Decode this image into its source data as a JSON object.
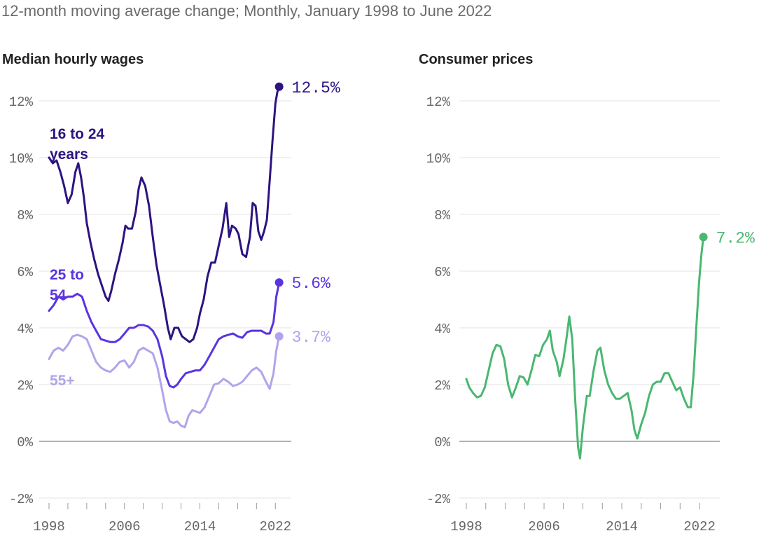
{
  "subtitle": "12-month moving average change; Monthly, January 1998 to June 2022",
  "chart_data": [
    {
      "type": "line",
      "title": "Median hourly wages",
      "y_ticks": [
        "-2%",
        "0%",
        "2%",
        "4%",
        "6%",
        "8%",
        "10%",
        "12%"
      ],
      "x_ticks": [
        "1998",
        "2006",
        "2014",
        "2022"
      ],
      "ylim": [
        -2,
        12
      ],
      "xlim": [
        1998,
        2022.5
      ],
      "grid": true,
      "series": [
        {
          "name": "16 to 24 years",
          "label_lines": [
            "16 to 24",
            "years"
          ],
          "color": "#2d1381",
          "end_label": "12.5%",
          "points": [
            [
              1998.0,
              10.0
            ],
            [
              1998.4,
              9.8
            ],
            [
              1998.8,
              9.9
            ],
            [
              1999.2,
              9.5
            ],
            [
              1999.6,
              9.0
            ],
            [
              2000.0,
              8.4
            ],
            [
              2000.4,
              8.7
            ],
            [
              2000.8,
              9.5
            ],
            [
              2001.1,
              9.8
            ],
            [
              2001.4,
              9.3
            ],
            [
              2001.7,
              8.6
            ],
            [
              2002.0,
              7.7
            ],
            [
              2002.4,
              7.0
            ],
            [
              2002.8,
              6.4
            ],
            [
              2003.2,
              5.9
            ],
            [
              2003.6,
              5.5
            ],
            [
              2004.0,
              5.1
            ],
            [
              2004.3,
              4.95
            ],
            [
              2004.6,
              5.3
            ],
            [
              2005.0,
              5.9
            ],
            [
              2005.4,
              6.4
            ],
            [
              2005.8,
              7.0
            ],
            [
              2006.1,
              7.6
            ],
            [
              2006.4,
              7.5
            ],
            [
              2006.8,
              7.5
            ],
            [
              2007.2,
              8.1
            ],
            [
              2007.5,
              8.9
            ],
            [
              2007.8,
              9.3
            ],
            [
              2008.2,
              9.0
            ],
            [
              2008.6,
              8.3
            ],
            [
              2009.0,
              7.2
            ],
            [
              2009.4,
              6.2
            ],
            [
              2009.8,
              5.5
            ],
            [
              2010.2,
              4.8
            ],
            [
              2010.6,
              4.0
            ],
            [
              2010.9,
              3.6
            ],
            [
              2011.3,
              4.0
            ],
            [
              2011.7,
              4.0
            ],
            [
              2012.1,
              3.7
            ],
            [
              2012.5,
              3.6
            ],
            [
              2012.9,
              3.5
            ],
            [
              2013.3,
              3.6
            ],
            [
              2013.7,
              4.0
            ],
            [
              2014.0,
              4.5
            ],
            [
              2014.4,
              5.0
            ],
            [
              2014.8,
              5.8
            ],
            [
              2015.2,
              6.3
            ],
            [
              2015.6,
              6.3
            ],
            [
              2016.0,
              6.9
            ],
            [
              2016.4,
              7.5
            ],
            [
              2016.8,
              8.4
            ],
            [
              2017.1,
              7.2
            ],
            [
              2017.4,
              7.6
            ],
            [
              2017.8,
              7.5
            ],
            [
              2018.1,
              7.3
            ],
            [
              2018.5,
              6.6
            ],
            [
              2018.9,
              6.5
            ],
            [
              2019.3,
              7.2
            ],
            [
              2019.6,
              8.4
            ],
            [
              2019.9,
              8.3
            ],
            [
              2020.2,
              7.4
            ],
            [
              2020.5,
              7.1
            ],
            [
              2020.8,
              7.4
            ],
            [
              2021.1,
              7.8
            ],
            [
              2021.4,
              9.2
            ],
            [
              2021.7,
              10.6
            ],
            [
              2022.0,
              11.9
            ],
            [
              2022.2,
              12.3
            ],
            [
              2022.4,
              12.5
            ]
          ]
        },
        {
          "name": "25 to 54",
          "label_lines": [
            "25 to",
            "54"
          ],
          "color": "#5a34e1",
          "end_label": "5.6%",
          "points": [
            [
              1998.0,
              4.6
            ],
            [
              1998.5,
              4.8
            ],
            [
              1999.0,
              5.1
            ],
            [
              1999.5,
              5.0
            ],
            [
              2000.0,
              5.1
            ],
            [
              2000.5,
              5.1
            ],
            [
              2001.0,
              5.2
            ],
            [
              2001.5,
              5.1
            ],
            [
              2002.0,
              4.6
            ],
            [
              2002.5,
              4.2
            ],
            [
              2003.0,
              3.9
            ],
            [
              2003.5,
              3.6
            ],
            [
              2004.0,
              3.55
            ],
            [
              2004.5,
              3.5
            ],
            [
              2005.0,
              3.5
            ],
            [
              2005.5,
              3.6
            ],
            [
              2006.0,
              3.8
            ],
            [
              2006.5,
              4.0
            ],
            [
              2007.0,
              4.0
            ],
            [
              2007.5,
              4.1
            ],
            [
              2008.0,
              4.1
            ],
            [
              2008.5,
              4.05
            ],
            [
              2009.0,
              3.9
            ],
            [
              2009.5,
              3.6
            ],
            [
              2010.0,
              3.0
            ],
            [
              2010.4,
              2.3
            ],
            [
              2010.8,
              1.95
            ],
            [
              2011.2,
              1.9
            ],
            [
              2011.6,
              2.0
            ],
            [
              2012.0,
              2.2
            ],
            [
              2012.5,
              2.4
            ],
            [
              2013.0,
              2.45
            ],
            [
              2013.5,
              2.5
            ],
            [
              2014.0,
              2.5
            ],
            [
              2014.5,
              2.7
            ],
            [
              2015.0,
              3.0
            ],
            [
              2015.5,
              3.3
            ],
            [
              2016.0,
              3.6
            ],
            [
              2016.5,
              3.7
            ],
            [
              2017.0,
              3.75
            ],
            [
              2017.5,
              3.8
            ],
            [
              2018.0,
              3.7
            ],
            [
              2018.5,
              3.65
            ],
            [
              2019.0,
              3.85
            ],
            [
              2019.5,
              3.9
            ],
            [
              2020.0,
              3.9
            ],
            [
              2020.5,
              3.9
            ],
            [
              2021.0,
              3.8
            ],
            [
              2021.4,
              3.8
            ],
            [
              2021.8,
              4.2
            ],
            [
              2022.1,
              5.1
            ],
            [
              2022.4,
              5.6
            ]
          ]
        },
        {
          "name": "55+",
          "label_lines": [
            "55+"
          ],
          "color": "#b3a3ec",
          "end_label": "3.7%",
          "points": [
            [
              1998.0,
              2.9
            ],
            [
              1998.5,
              3.2
            ],
            [
              1999.0,
              3.3
            ],
            [
              1999.5,
              3.2
            ],
            [
              2000.0,
              3.4
            ],
            [
              2000.5,
              3.7
            ],
            [
              2001.0,
              3.75
            ],
            [
              2001.5,
              3.7
            ],
            [
              2002.0,
              3.6
            ],
            [
              2002.5,
              3.2
            ],
            [
              2003.0,
              2.8
            ],
            [
              2003.5,
              2.6
            ],
            [
              2004.0,
              2.5
            ],
            [
              2004.5,
              2.45
            ],
            [
              2005.0,
              2.6
            ],
            [
              2005.5,
              2.8
            ],
            [
              2006.0,
              2.85
            ],
            [
              2006.5,
              2.6
            ],
            [
              2007.0,
              2.8
            ],
            [
              2007.5,
              3.2
            ],
            [
              2008.0,
              3.3
            ],
            [
              2008.5,
              3.2
            ],
            [
              2009.0,
              3.1
            ],
            [
              2009.5,
              2.6
            ],
            [
              2010.0,
              1.8
            ],
            [
              2010.4,
              1.1
            ],
            [
              2010.8,
              0.7
            ],
            [
              2011.2,
              0.65
            ],
            [
              2011.6,
              0.7
            ],
            [
              2012.0,
              0.55
            ],
            [
              2012.4,
              0.5
            ],
            [
              2012.8,
              0.9
            ],
            [
              2013.2,
              1.1
            ],
            [
              2013.6,
              1.05
            ],
            [
              2014.0,
              1.0
            ],
            [
              2014.5,
              1.2
            ],
            [
              2015.0,
              1.6
            ],
            [
              2015.5,
              2.0
            ],
            [
              2016.0,
              2.05
            ],
            [
              2016.5,
              2.2
            ],
            [
              2017.0,
              2.1
            ],
            [
              2017.5,
              1.95
            ],
            [
              2018.0,
              2.0
            ],
            [
              2018.5,
              2.1
            ],
            [
              2019.0,
              2.3
            ],
            [
              2019.5,
              2.5
            ],
            [
              2020.0,
              2.6
            ],
            [
              2020.5,
              2.45
            ],
            [
              2021.0,
              2.1
            ],
            [
              2021.4,
              1.85
            ],
            [
              2021.8,
              2.4
            ],
            [
              2022.1,
              3.2
            ],
            [
              2022.4,
              3.7
            ]
          ]
        }
      ]
    },
    {
      "type": "line",
      "title": "Consumer prices",
      "y_ticks": [
        "-2%",
        "0%",
        "2%",
        "4%",
        "6%",
        "8%",
        "10%",
        "12%"
      ],
      "x_ticks": [
        "1998",
        "2006",
        "2014",
        "2022"
      ],
      "ylim": [
        -2,
        12
      ],
      "xlim": [
        1998,
        2022.5
      ],
      "grid": true,
      "series": [
        {
          "color": "#4ab771",
          "end_label": "7.2%",
          "points": [
            [
              1998.0,
              2.2
            ],
            [
              1998.3,
              1.9
            ],
            [
              1998.7,
              1.7
            ],
            [
              1999.1,
              1.55
            ],
            [
              1999.5,
              1.6
            ],
            [
              1999.9,
              1.9
            ],
            [
              2000.3,
              2.5
            ],
            [
              2000.7,
              3.1
            ],
            [
              2001.1,
              3.4
            ],
            [
              2001.5,
              3.35
            ],
            [
              2001.9,
              2.9
            ],
            [
              2002.3,
              2.0
            ],
            [
              2002.7,
              1.55
            ],
            [
              2003.1,
              1.9
            ],
            [
              2003.5,
              2.3
            ],
            [
              2003.9,
              2.25
            ],
            [
              2004.3,
              2.0
            ],
            [
              2004.7,
              2.5
            ],
            [
              2005.1,
              3.05
            ],
            [
              2005.5,
              3.0
            ],
            [
              2005.9,
              3.4
            ],
            [
              2006.3,
              3.6
            ],
            [
              2006.6,
              3.9
            ],
            [
              2006.9,
              3.2
            ],
            [
              2007.3,
              2.8
            ],
            [
              2007.6,
              2.3
            ],
            [
              2008.0,
              2.9
            ],
            [
              2008.3,
              3.6
            ],
            [
              2008.6,
              4.4
            ],
            [
              2008.9,
              3.6
            ],
            [
              2009.2,
              1.5
            ],
            [
              2009.5,
              -0.2
            ],
            [
              2009.7,
              -0.6
            ],
            [
              2010.0,
              0.5
            ],
            [
              2010.4,
              1.6
            ],
            [
              2010.7,
              1.6
            ],
            [
              2011.1,
              2.5
            ],
            [
              2011.5,
              3.2
            ],
            [
              2011.8,
              3.3
            ],
            [
              2012.2,
              2.5
            ],
            [
              2012.6,
              2.0
            ],
            [
              2013.0,
              1.7
            ],
            [
              2013.4,
              1.5
            ],
            [
              2013.8,
              1.5
            ],
            [
              2014.2,
              1.6
            ],
            [
              2014.6,
              1.7
            ],
            [
              2015.0,
              1.1
            ],
            [
              2015.3,
              0.4
            ],
            [
              2015.6,
              0.1
            ],
            [
              2016.0,
              0.6
            ],
            [
              2016.4,
              1.0
            ],
            [
              2016.8,
              1.6
            ],
            [
              2017.2,
              2.0
            ],
            [
              2017.6,
              2.1
            ],
            [
              2018.0,
              2.1
            ],
            [
              2018.4,
              2.4
            ],
            [
              2018.8,
              2.4
            ],
            [
              2019.2,
              2.1
            ],
            [
              2019.6,
              1.8
            ],
            [
              2020.0,
              1.9
            ],
            [
              2020.4,
              1.5
            ],
            [
              2020.8,
              1.2
            ],
            [
              2021.1,
              1.2
            ],
            [
              2021.4,
              2.4
            ],
            [
              2021.7,
              4.2
            ],
            [
              2021.95,
              5.6
            ],
            [
              2022.2,
              6.6
            ],
            [
              2022.4,
              7.2
            ]
          ]
        }
      ]
    }
  ]
}
